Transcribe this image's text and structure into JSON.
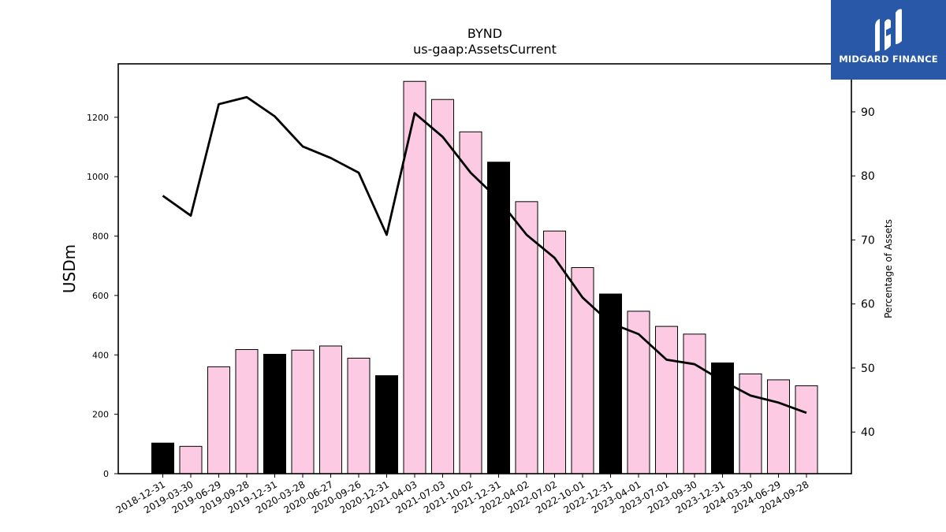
{
  "chart_data": {
    "type": "bar",
    "title": "BYND",
    "subtitle": "us-gaap:AssetsCurrent",
    "ylabel": "USDm",
    "y2label": "Percentage of Assets",
    "ylim": [
      0,
      1380
    ],
    "y2lim": [
      33.5,
      97.5
    ],
    "yticks": [
      0,
      200,
      400,
      600,
      800,
      1000,
      1200
    ],
    "y2ticks": [
      40,
      50,
      60,
      70,
      80,
      90
    ],
    "categories": [
      "2018-12-31",
      "2019-03-30",
      "2019-06-29",
      "2019-09-28",
      "2019-12-31",
      "2020-03-28",
      "2020-06-27",
      "2020-09-26",
      "2020-12-31",
      "2021-04-03",
      "2021-07-03",
      "2021-10-02",
      "2021-12-31",
      "2022-04-02",
      "2022-07-02",
      "2022-10-01",
      "2022-12-31",
      "2023-04-01",
      "2023-07-01",
      "2023-09-30",
      "2023-12-31",
      "2024-03-30",
      "2024-06-29",
      "2024-09-28"
    ],
    "values": [
      103,
      92,
      360,
      418,
      402,
      416,
      430,
      389,
      330,
      1321,
      1260,
      1151,
      1049,
      916,
      817,
      694,
      605,
      547,
      496,
      470,
      373,
      336,
      316,
      296
    ],
    "highlight": [
      true,
      false,
      false,
      false,
      true,
      false,
      false,
      false,
      true,
      false,
      false,
      false,
      true,
      false,
      false,
      false,
      true,
      false,
      false,
      false,
      true,
      false,
      false,
      false
    ],
    "line_values": [
      76.9,
      73.8,
      91.2,
      92.3,
      89.3,
      84.6,
      82.8,
      80.5,
      70.8,
      89.8,
      86.1,
      80.5,
      76.3,
      70.8,
      67.2,
      61.0,
      57.0,
      55.3,
      51.3,
      50.6,
      48.0,
      45.7,
      44.6,
      43.0
    ],
    "colors": {
      "bar": "#fccae3",
      "bar_highlight": "#000000",
      "line": "#000000",
      "edge": "#000000"
    },
    "grid": false,
    "legend": "none"
  },
  "logo": {
    "text": "MIDGARD FINANCE",
    "color": "#2a58a8"
  }
}
